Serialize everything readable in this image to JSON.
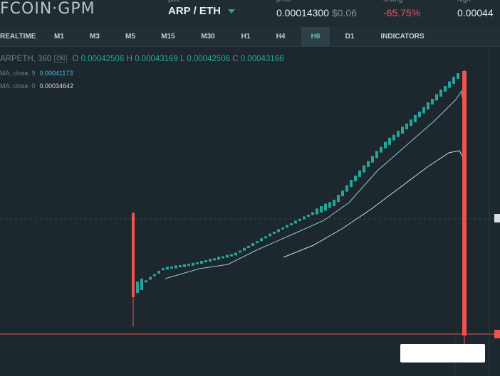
{
  "header": {
    "logo": "FCOIN·GPM",
    "pair_label": "pair",
    "pair_value": "ARP / ETH",
    "price_label": "price",
    "price_value": "0.00014300",
    "price_usd": "$0.06",
    "change_label": "chang",
    "change_value": "-65.75%",
    "high_label": "high",
    "high_value": "0.00044"
  },
  "tabs": [
    "REALTIME",
    "M1",
    "M3",
    "M5",
    "M15",
    "M30",
    "H1",
    "H4",
    "H6",
    "D1",
    "INDICATORS"
  ],
  "active_tab": "H6",
  "legend": {
    "symbol": "ARPETH, 360",
    "box_label": "ON",
    "o_label": "O",
    "o_value": "0.00042506",
    "h_label": "H",
    "h_value": "0.00043169",
    "l_label": "L",
    "l_value": "0.00042506",
    "c_label": "C",
    "c_value": "0.00043166",
    "ma1_label": "MA, close, 9",
    "ma1_value": "0.00041173",
    "ma2_label": "MA, close, 0",
    "ma2_value": "0.00034642"
  },
  "colors": {
    "up": "#26a69a",
    "down": "#ef5350",
    "ma_fast": "#8fc9d9",
    "ma_slow": "#d9d9d9"
  },
  "axis_tags": {
    "mid": "0",
    "low": "0"
  }
}
